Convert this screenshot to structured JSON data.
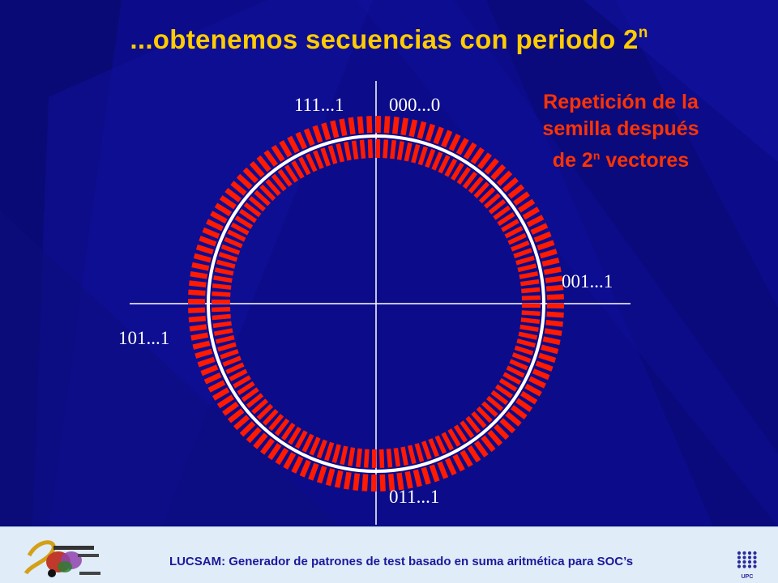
{
  "slide": {
    "title_main": "...obtenemos secuencias con periodo 2",
    "title_exp": "n",
    "note_line1": "Repetición de la",
    "note_line2": "semilla después",
    "note_line3_pre": "de 2",
    "note_line3_exp": "n",
    "note_line3_post": " vectores"
  },
  "diagram": {
    "label_top_left": "111...1",
    "label_top_right": "000...0",
    "label_right": "001...1",
    "label_left": "101...1",
    "label_bottom": "011...1",
    "tick_count": 128,
    "tick_color": "#ff1a00",
    "circle_color": "#ffffff"
  },
  "footer": {
    "text": "LUCSAM: Generador de patrones de test basado en suma aritmética para SOC’s",
    "logo": "lucsam-logo",
    "university_logo": "upc-logo"
  },
  "colors": {
    "background": "#0c0c8a",
    "title": "#ffcc00",
    "note": "#ff3300",
    "footer_bg": "#e0ecf8",
    "footer_text": "#1a1a9a"
  }
}
